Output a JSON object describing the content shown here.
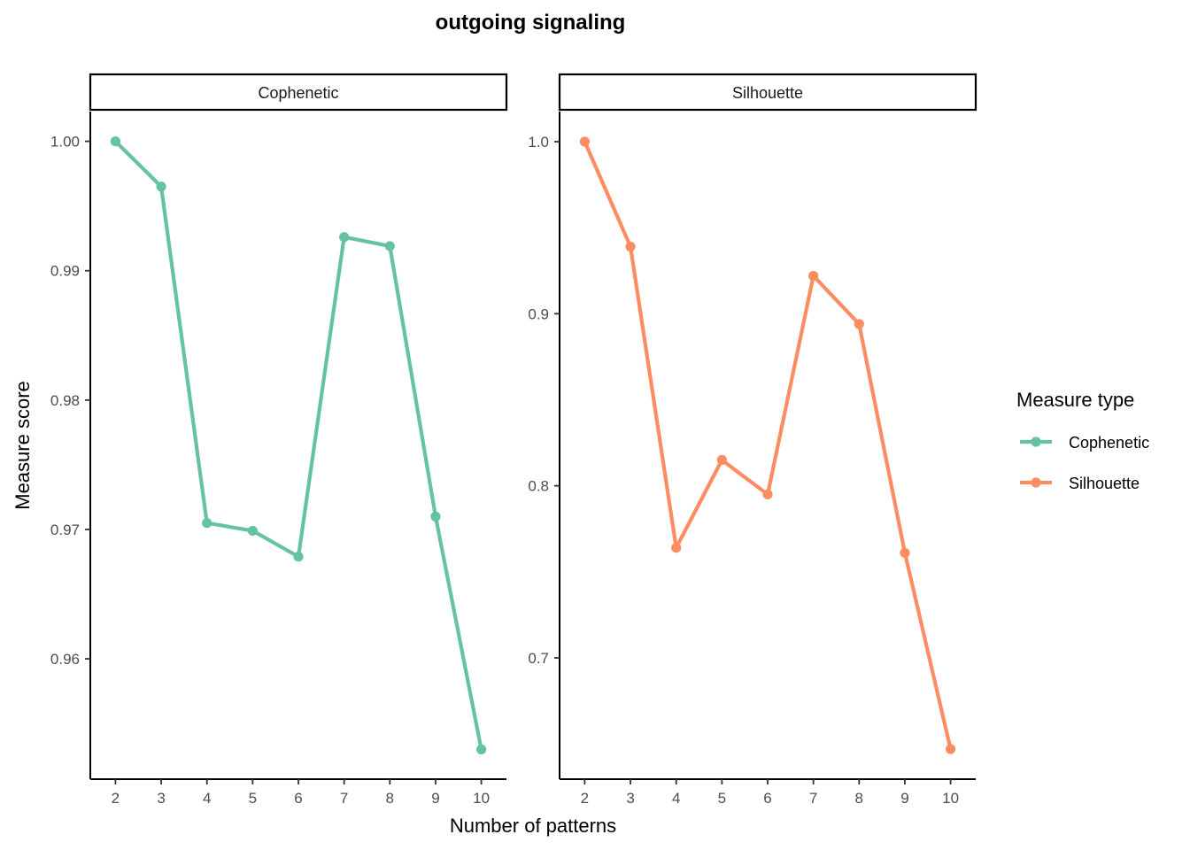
{
  "chart_data": {
    "type": "line",
    "title": "outgoing signaling",
    "xlabel": "Number of patterns",
    "ylabel": "Measure score",
    "x": [
      2,
      3,
      4,
      5,
      6,
      7,
      8,
      9,
      10
    ],
    "grid": false,
    "legend": {
      "title": "Measure type",
      "position": "right",
      "entries": [
        "Cophenetic",
        "Silhouette"
      ]
    },
    "facets": [
      {
        "name": "Cophenetic",
        "color": "#66C2A5",
        "values": [
          1.0,
          0.9965,
          0.9705,
          0.9699,
          0.9679,
          0.9926,
          0.9919,
          0.971,
          0.953
        ],
        "ylim": [
          0.9507,
          1.0023
        ],
        "yticks": [
          0.96,
          0.97,
          0.98,
          0.99,
          1.0
        ],
        "ytick_labels": [
          "0.96",
          "0.97",
          "0.98",
          "0.99",
          "1.00"
        ],
        "xlim": [
          1.45,
          10.55
        ]
      },
      {
        "name": "Silhouette",
        "color": "#FC8D62",
        "values": [
          1.0,
          0.939,
          0.764,
          0.815,
          0.795,
          0.922,
          0.894,
          0.761,
          0.647
        ],
        "ylim": [
          0.6295,
          1.0175
        ],
        "yticks": [
          0.7,
          0.8,
          0.9,
          1.0
        ],
        "ytick_labels": [
          "0.7",
          "0.8",
          "0.9",
          "1.0"
        ],
        "xlim": [
          1.45,
          10.55
        ]
      }
    ]
  }
}
